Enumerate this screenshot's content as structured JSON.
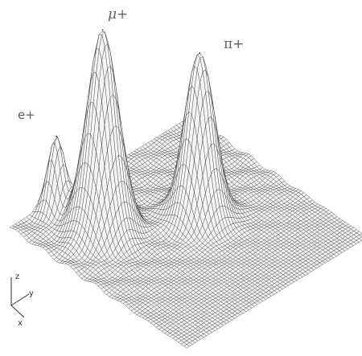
{
  "chart_data": {
    "type": "surface",
    "title": "",
    "peaks": [
      {
        "label": "e+",
        "x": 0.06,
        "y": 0.2,
        "height": 0.31,
        "spread": 0.035
      },
      {
        "label": "μ+",
        "x": 0.26,
        "y": 0.26,
        "height": 0.82,
        "spread": 0.065
      },
      {
        "label": "π+",
        "x": 0.46,
        "y": 0.6,
        "height": 0.68,
        "spread": 0.06
      }
    ],
    "grid": true,
    "axes": {
      "x": "x",
      "y": "y",
      "z": "z"
    }
  },
  "labels": {
    "e": "e+",
    "mu": "μ+",
    "pi": "π+"
  },
  "colors": {
    "mesh": "#2b2b2b",
    "surface": "#f4f4f4",
    "background": "#ffffff"
  }
}
